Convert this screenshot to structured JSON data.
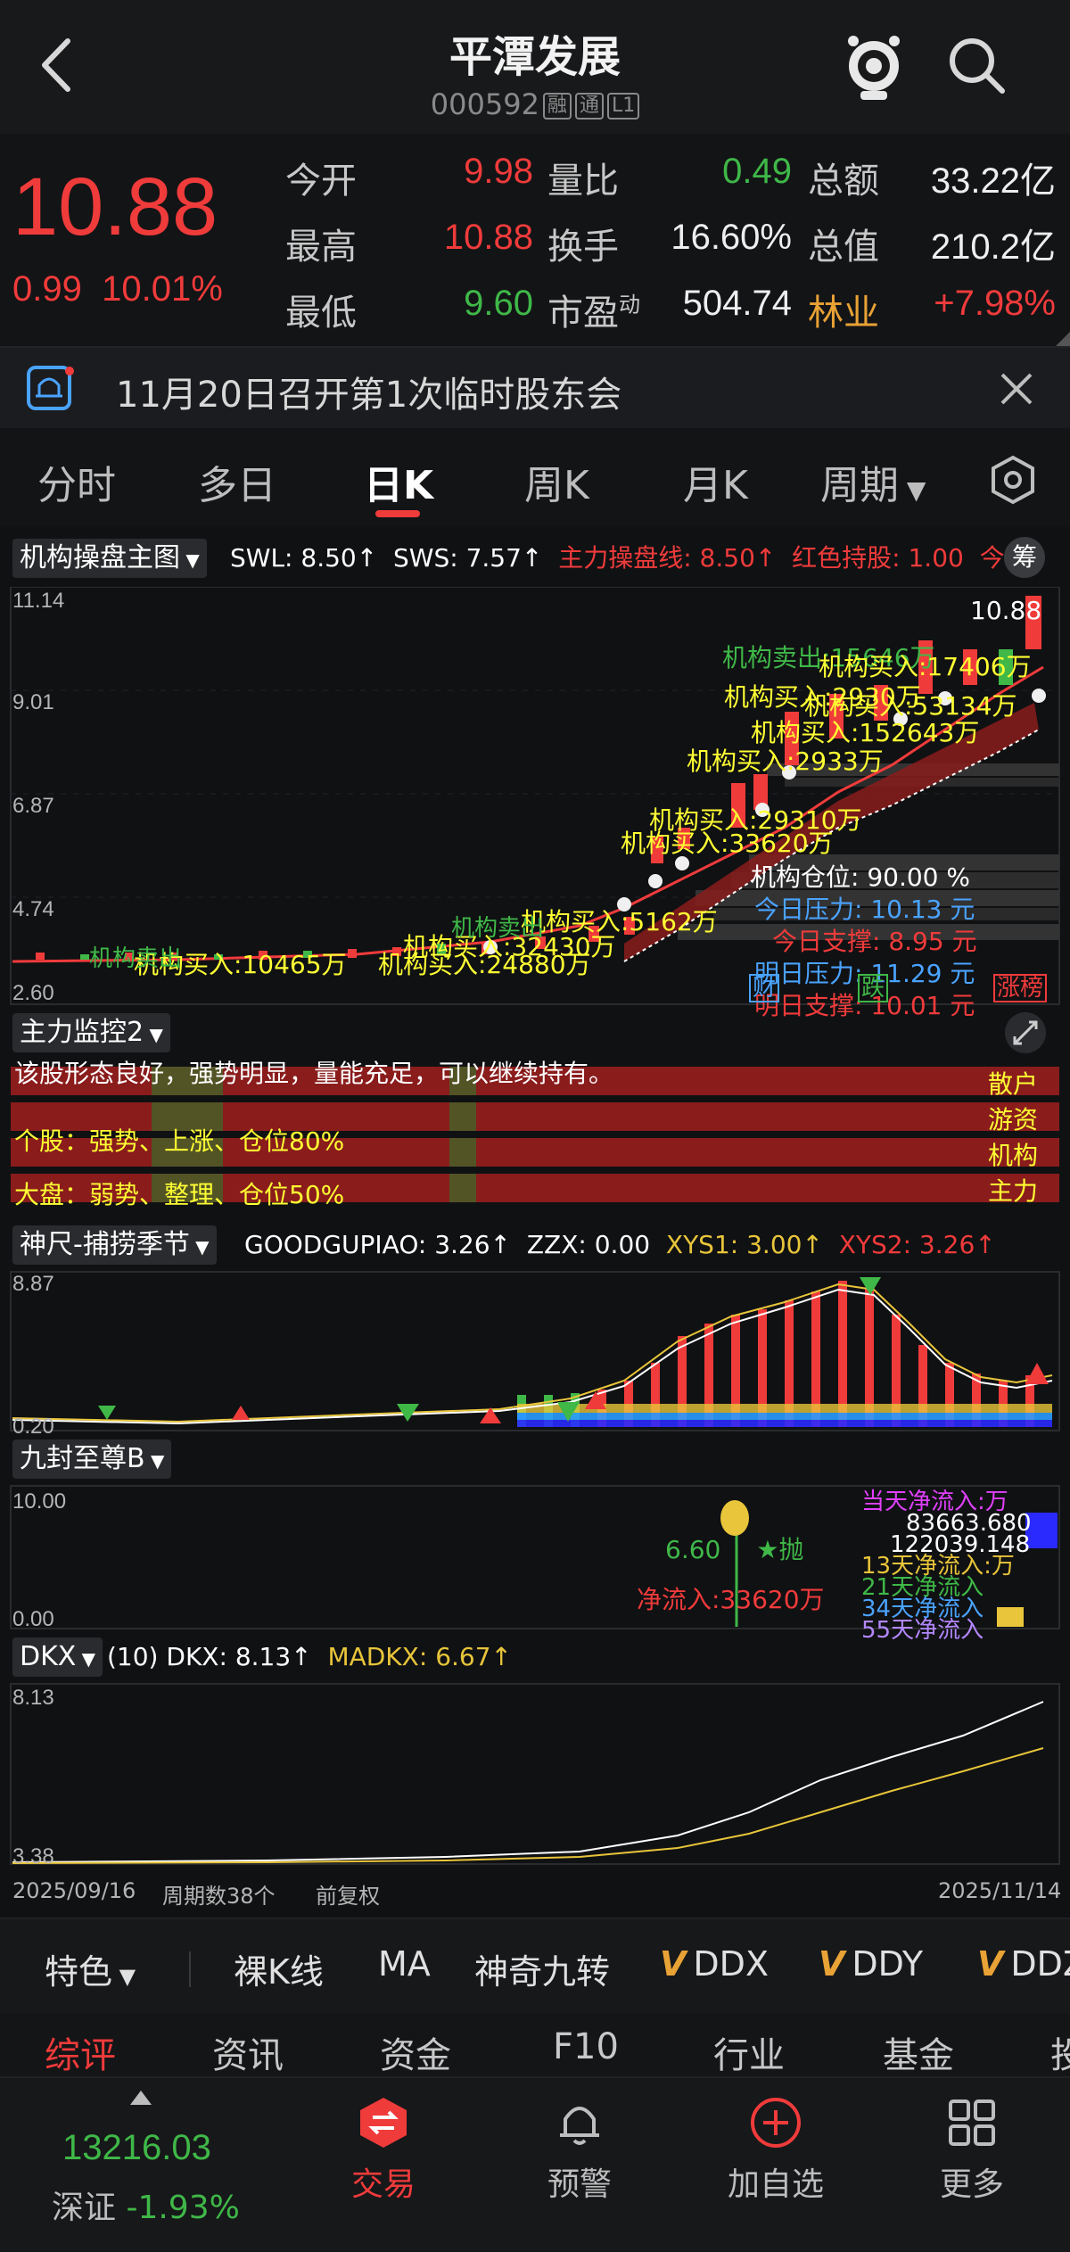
{
  "header": {
    "title": "平潭发展",
    "code": "000592",
    "tags": [
      "融",
      "通",
      "L1"
    ]
  },
  "quote": {
    "price": "10.88",
    "change": "0.99",
    "change_pct": "10.01%",
    "rows": [
      [
        {
          "label": "今开",
          "value": "9.98"
        },
        {
          "label": "量比",
          "value": "0.49"
        },
        {
          "label": "总额",
          "value": "33.22亿"
        }
      ],
      [
        {
          "label": "最高",
          "value": "10.88"
        },
        {
          "label": "换手",
          "value": "16.60%"
        },
        {
          "label": "总值",
          "value": "210.2亿"
        }
      ],
      [
        {
          "label": "最低",
          "value": "9.60"
        },
        {
          "label": "市盈",
          "value": "504.74"
        },
        {
          "label": "林业",
          "value": "+7.98%"
        }
      ]
    ],
    "pe_superscript": "动",
    "colors": {
      "up": "#f03b3b",
      "down": "#3fb848",
      "sector": "#e8a235"
    }
  },
  "notice": {
    "text": "11月20日召开第1次临时股东会"
  },
  "tabs": [
    "分时",
    "多日",
    "日K",
    "周K",
    "月K",
    "周期"
  ],
  "active_tab": "日K",
  "main_chart": {
    "indicator": "机构操盘主图",
    "params": [
      {
        "text": "SWL: 8.50↑",
        "color": "#ffffff"
      },
      {
        "text": "SWS: 7.57↑",
        "color": "#ffffff"
      },
      {
        "text": "主力操盘线: 8.50↑",
        "color": "#f03b3b"
      },
      {
        "text": "红色持股: 1.00",
        "color": "#f03b3b"
      },
      {
        "text": "今离",
        "color": "#f03b3b"
      }
    ],
    "chip_label": "筹",
    "y_axis": [
      "11.14",
      "9.01",
      "6.87",
      "4.74",
      "2.60"
    ],
    "last_price_label": "10.88",
    "annotations_yellow": [
      "机构买入:17406万",
      "机构买入:2930万",
      "机构买入:53134万",
      "机构买入:152643万",
      "机构买入:2933万",
      "机构买入:29310万",
      "机构买入:33620万",
      "机构买入:5162万",
      "机构买入:32430万",
      "机构买入:24880万",
      "机构买入:10465万"
    ],
    "annotations_green": [
      "机构卖出:15646万",
      "机构卖出",
      "机构卖出"
    ],
    "info": [
      {
        "text": "机构仓位:  90.00 %",
        "color": "#ffffff"
      },
      {
        "text": "今日压力:  10.13 元",
        "color": "#4aa3ff"
      },
      {
        "text": "今日支撑:  8.95 元",
        "color": "#f03b3b"
      },
      {
        "text": "明日压力:  11.29 元",
        "color": "#4aa3ff"
      },
      {
        "text": "明日支撑:  10.01 元",
        "color": "#f03b3b"
      }
    ],
    "markers": [
      "财",
      "跌",
      "涨榜"
    ]
  },
  "monitor": {
    "indicator": "主力监控2",
    "lines": [
      {
        "text": "该股形态良好，强势明显，量能充足，可以继续持有。",
        "color": "#ffffff"
      },
      {
        "text": "个股：强势、上涨、仓位80%",
        "color": "#ffff33"
      },
      {
        "text": "大盘：弱势、整理、仓位50%",
        "color": "#ffff33"
      }
    ],
    "legend": [
      "散户",
      "游资",
      "机构",
      "主力"
    ]
  },
  "shenchi": {
    "indicator": "神尺-捕捞季节",
    "params": [
      {
        "text": "GOODGUPIAO: 3.26↑",
        "color": "#ffffff"
      },
      {
        "text": "ZZX: 0.00",
        "color": "#ffffff"
      },
      {
        "text": "XYS1: 3.00↑",
        "color": "#e8c53a"
      },
      {
        "text": "XYS2: 3.26↑",
        "color": "#f03b3b"
      }
    ],
    "y_axis": [
      "8.87",
      "0.20"
    ]
  },
  "jiufeng": {
    "indicator": "九封至尊B",
    "y_axis": [
      "10.00",
      "0.00"
    ],
    "label_sell": "6.60",
    "label_sell_suffix": "★抛",
    "net_inflow": "净流入:33620万",
    "overlay": [
      "当天净流入:万",
      "83663.680",
      "122039.148",
      "13天净流入:万",
      "21天净流入",
      "34天净流入",
      "55天净流入"
    ]
  },
  "dkx": {
    "indicator": "DKX",
    "params": [
      {
        "text": "(10) DKX: 8.13↑",
        "color": "#ffffff"
      },
      {
        "text": "MADKX: 6.67↑",
        "color": "#e8c53a"
      }
    ],
    "y_axis": [
      "8.13",
      "3.38"
    ],
    "footer": {
      "start": "2025/09/16",
      "period": "周期数38个",
      "adj": "前复权",
      "end": "2025/11/14"
    }
  },
  "indicator_bar": {
    "feature": "特色",
    "items": [
      "裸K线",
      "MA",
      "神奇九转",
      "DDX",
      "DDY",
      "DDZ"
    ]
  },
  "bottom_tabs": [
    "综评",
    "资讯",
    "资金",
    "F10",
    "行业",
    "基金",
    "投"
  ],
  "footer": {
    "index_value": "13216.03",
    "index_name": "深证",
    "index_change": "-1.93%",
    "buttons": [
      "交易",
      "预警",
      "加自选",
      "更多"
    ]
  }
}
